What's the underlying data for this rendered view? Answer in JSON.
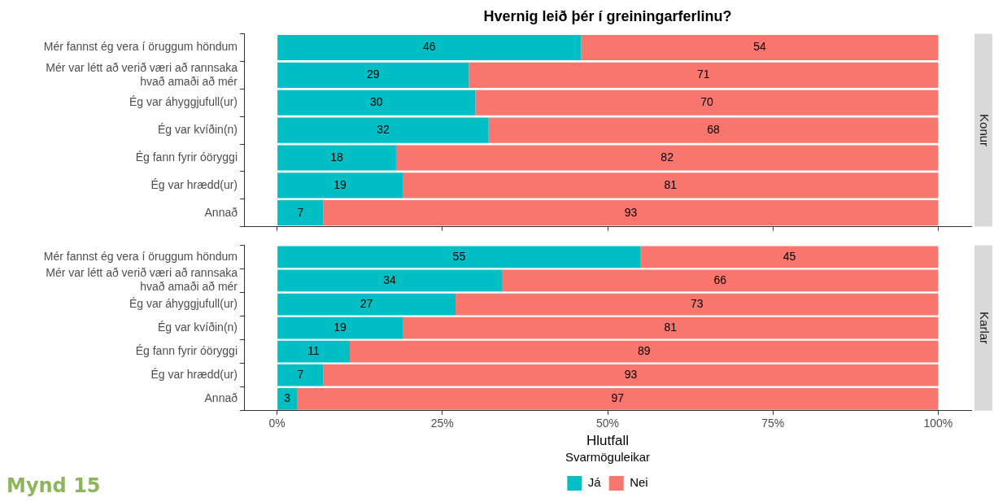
{
  "chart_data": [
    {
      "type": "bar",
      "title": "Hvernig leið þér í greiningarferlinu?",
      "orientation": "horizontal",
      "stacked": true,
      "data_labels": true,
      "grid": false,
      "legend": false,
      "tick_labels": "y",
      "y2label": "Konur",
      "categories": [
        "Mér fannst ég vera í öruggum höndum",
        "Mér var létt að verið væri að rannsaka\nhvað amaði að mér",
        "Ég var áhyggjufull(ur)",
        "Ég var kvíðin(n)",
        "Ég fann fyrir óöryggi",
        "Ég var hrædd(ur)",
        "Annað"
      ],
      "xlim": [
        -5,
        105
      ],
      "xticks": [
        0,
        25,
        50,
        75,
        100
      ],
      "series": [
        {
          "color": "#00bfc4",
          "values": [
            46,
            29,
            30,
            32,
            18,
            19,
            7
          ]
        },
        {
          "color": "#f8766d",
          "values": [
            54,
            71,
            70,
            68,
            82,
            81,
            93
          ]
        }
      ]
    },
    {
      "type": "bar",
      "xlabel": "Hlutfall",
      "orientation": "horizontal",
      "stacked": true,
      "data_labels": true,
      "grid": false,
      "legend": "bottom",
      "legend_title": "Svarmöguleikar",
      "y2label": "Karlar",
      "annotations": [
        "Mynd 15"
      ],
      "categories": [
        "Mér fannst ég vera í öruggum höndum",
        "Mér var létt að verið væri að rannsaka\nhvað amaði að mér",
        "Ég var áhyggjufull(ur)",
        "Ég var kvíðin(n)",
        "Ég fann fyrir óöryggi",
        "Ég var hrædd(ur)",
        "Annað"
      ],
      "xlim": [
        -5,
        105
      ],
      "xticks": [
        {
          "value": 0,
          "label": "0%"
        },
        {
          "value": 25,
          "label": "25%"
        },
        {
          "value": 50,
          "label": "50%"
        },
        {
          "value": 75,
          "label": "75%"
        },
        {
          "value": 100,
          "label": "100%"
        }
      ],
      "series": [
        {
          "name": "Já",
          "color": "#00bfc4",
          "values": [
            55,
            34,
            27,
            19,
            11,
            7,
            3
          ]
        },
        {
          "name": "Nei",
          "color": "#f8766d",
          "values": [
            45,
            66,
            73,
            81,
            89,
            93,
            97
          ]
        }
      ]
    }
  ]
}
